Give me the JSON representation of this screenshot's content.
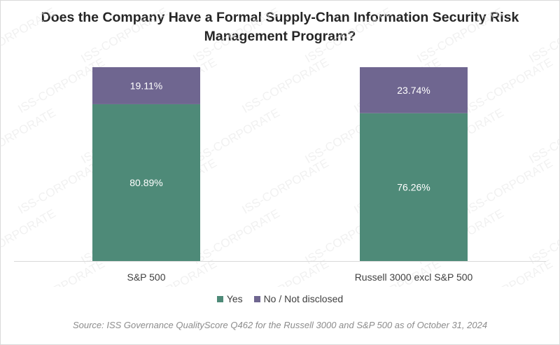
{
  "colors": {
    "yes": "#4e8a78",
    "no": "#6f6690"
  },
  "chart_data": {
    "type": "bar",
    "stacked": true,
    "title": "Does the Company Have a Formal Supply-Chan Information Security Risk Management Program?",
    "categories": [
      "S&P 500",
      "Russell 3000 excl S&P 500"
    ],
    "series": [
      {
        "name": "Yes",
        "values": [
          80.89,
          76.26
        ],
        "labels": [
          "80.89%",
          "76.26%"
        ]
      },
      {
        "name": "No / Not disclosed",
        "values": [
          19.11,
          23.74
        ],
        "labels": [
          "19.11%",
          "23.74%"
        ]
      }
    ],
    "ylim": [
      0,
      100
    ],
    "grid": false,
    "legend": "bottom"
  },
  "source": "Source: ISS Governance QualityScore Q462 for the Russell 3000 and S&P 500 as of October 31, 2024",
  "watermark": "ISS-CORPORATE"
}
